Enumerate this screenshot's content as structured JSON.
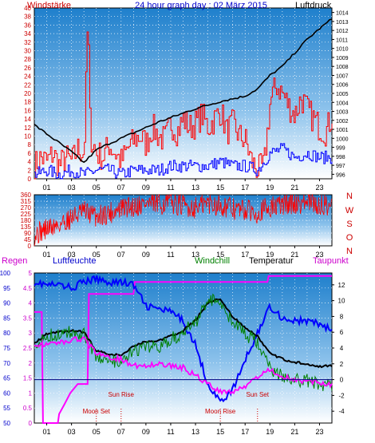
{
  "chart_data": [
    {
      "type": "line",
      "title": "24 hour graph day : 02 März 2015",
      "left_label": "Windstärke",
      "right_label": "Luftdruck",
      "x_ticks": [
        "01",
        "03",
        "05",
        "07",
        "09",
        "11",
        "13",
        "15",
        "17",
        "19",
        "21",
        "23"
      ],
      "xlim": [
        0,
        24
      ],
      "left_ticks": [
        "0",
        "2",
        "4",
        "6",
        "8",
        "10",
        "12",
        "14",
        "16",
        "18",
        "20",
        "22",
        "24",
        "26",
        "28",
        "30",
        "32",
        "34",
        "36",
        "38",
        "40"
      ],
      "left_ylim": [
        0,
        40
      ],
      "right_ticks": [
        "996",
        "997",
        "998",
        "999",
        "1000",
        "1001",
        "1002",
        "1003",
        "1004",
        "1005",
        "1006",
        "1007",
        "1008",
        "1009",
        "1010",
        "1011",
        "1012",
        "1013",
        "1014"
      ],
      "right_ylim": [
        995.5,
        1014.5
      ],
      "series": [
        {
          "role": "wind gust",
          "axis": "left",
          "color": "#ff0000",
          "x": [
            0,
            0.5,
            1,
            1.5,
            2,
            2.5,
            3,
            3.5,
            4,
            4.3,
            4.5,
            5,
            5.5,
            6,
            6.5,
            7,
            7.5,
            8,
            8.5,
            9,
            9.5,
            10,
            10.5,
            11,
            11.5,
            12,
            12.5,
            13,
            13.5,
            14,
            14.5,
            15,
            15.5,
            16,
            16.5,
            17,
            17.5,
            18,
            18.5,
            19,
            19.5,
            20,
            20.5,
            21,
            21.5,
            22,
            22.5,
            23,
            23.5,
            24
          ],
          "values": [
            3,
            5,
            4,
            6,
            3,
            5,
            4,
            7,
            6,
            39,
            10,
            6,
            5,
            8,
            6,
            4,
            7,
            9,
            10,
            8,
            12,
            10,
            9,
            13,
            11,
            14,
            12,
            13,
            15,
            12,
            14,
            16,
            11,
            13,
            10,
            9,
            4,
            2,
            3,
            18,
            22,
            20,
            17,
            15,
            19,
            16,
            14,
            12,
            11,
            15
          ]
        },
        {
          "role": "wind average",
          "axis": "left",
          "color": "#0000ff",
          "x": [
            0,
            1,
            2,
            3,
            4,
            5,
            6,
            7,
            8,
            9,
            10,
            11,
            12,
            13,
            14,
            15,
            16,
            17,
            18,
            19,
            20,
            21,
            22,
            23,
            24
          ],
          "values": [
            1,
            2,
            1,
            2,
            1,
            2,
            2,
            1,
            2,
            2,
            2,
            3,
            3,
            3,
            3,
            4,
            3,
            3,
            2,
            6,
            7,
            5,
            6,
            5,
            5
          ]
        },
        {
          "role": "pressure",
          "axis": "right",
          "color": "#000000",
          "x": [
            0,
            1,
            2,
            3,
            4,
            5,
            6,
            7,
            8,
            9,
            10,
            11,
            12,
            13,
            14,
            15,
            16,
            17,
            18,
            19,
            20,
            21,
            22,
            23,
            24
          ],
          "values": [
            1001.5,
            1000.5,
            999.5,
            998.5,
            997.3,
            998.7,
            999.4,
            1000.0,
            1000.6,
            1001.2,
            1001.8,
            1002.3,
            1002.8,
            1003.3,
            1003.7,
            1004.1,
            1004.4,
            1004.7,
            1005.5,
            1007.0,
            1008.0,
            1009.5,
            1011.0,
            1012.2,
            1013.3
          ]
        }
      ]
    },
    {
      "type": "line",
      "x_ticks": [
        "01",
        "03",
        "05",
        "07",
        "09",
        "11",
        "13",
        "15",
        "17",
        "19",
        "21",
        "23"
      ],
      "xlim": [
        0,
        24
      ],
      "y_ticks": [
        "0",
        "45",
        "90",
        "135",
        "180",
        "225",
        "270",
        "315",
        "360"
      ],
      "ylim": [
        0,
        360
      ],
      "right_labels": [
        "N",
        "W",
        "S",
        "O",
        "N"
      ],
      "series": [
        {
          "role": "wind direction",
          "color": "#ff0000",
          "x": [
            0,
            1,
            2,
            3,
            4,
            5,
            6,
            7,
            8,
            9,
            10,
            11,
            12,
            13,
            14,
            15,
            16,
            17,
            18,
            19,
            20,
            21,
            22,
            23,
            24
          ],
          "values": [
            80,
            120,
            150,
            200,
            240,
            210,
            230,
            260,
            280,
            300,
            290,
            310,
            280,
            270,
            300,
            290,
            260,
            250,
            240,
            270,
            290,
            300,
            310,
            280,
            300
          ]
        }
      ]
    },
    {
      "type": "line",
      "labels": {
        "rain": "Regen",
        "humidity": "Luftfeuchte",
        "windchill": "Windchill",
        "temperature": "Temperatur",
        "dewpoint": "Taupunkt"
      },
      "x_ticks": [
        "01",
        "03",
        "05",
        "07",
        "09",
        "11",
        "13",
        "15",
        "17",
        "19",
        "21",
        "23"
      ],
      "xlim": [
        0,
        24
      ],
      "rain_ticks": [
        "0",
        "0.5",
        "1",
        "1.5",
        "2",
        "2.5",
        "3",
        "3.5",
        "4",
        "4.5",
        "5"
      ],
      "rain_ylim": [
        0,
        5
      ],
      "humidity_ticks": [
        "50",
        "55",
        "60",
        "65",
        "70",
        "75",
        "80",
        "85",
        "90",
        "95",
        "100"
      ],
      "humidity_ylim": [
        50,
        100
      ],
      "temp_ticks": [
        "-4",
        "-2",
        "0",
        "2",
        "4",
        "6",
        "8",
        "10",
        "12"
      ],
      "temp_ylim": [
        -5.5,
        13.5
      ],
      "annotations": [
        {
          "text": "Sun Rise",
          "x": 7
        },
        {
          "text": "Moon Set",
          "x": 5
        },
        {
          "text": "Moon Rise",
          "x": 15
        },
        {
          "text": "Sun Set",
          "x": 18
        }
      ],
      "series": [
        {
          "role": "rain",
          "axis": "rain",
          "color": "#ff00ff",
          "x": [
            0,
            0.6,
            0.7,
            1.9,
            2.0,
            2.4,
            2.9,
            3.5,
            4.3,
            4.4,
            8.0,
            8.1,
            18.8,
            18.9,
            24
          ],
          "values": [
            3.7,
            3.7,
            0,
            0,
            0.3,
            0.6,
            1.0,
            1.3,
            1.3,
            4.3,
            4.3,
            4.7,
            4.7,
            4.9,
            4.9
          ]
        },
        {
          "role": "humidity",
          "axis": "humidity",
          "color": "#0000ff",
          "x": [
            0,
            1,
            2,
            3,
            4,
            5,
            6,
            7,
            8,
            9,
            10,
            11,
            12,
            13,
            14,
            15,
            16,
            17,
            18,
            19,
            20,
            21,
            22,
            23,
            24
          ],
          "values": [
            97,
            96,
            96,
            95,
            97,
            98,
            97,
            97,
            96,
            89,
            88,
            87,
            84,
            76,
            63,
            57,
            61,
            71,
            80,
            89,
            85,
            84,
            84,
            83,
            81
          ]
        },
        {
          "role": "temperature",
          "axis": "temp",
          "color": "#000000",
          "x": [
            0,
            1,
            2,
            3,
            4,
            5,
            6,
            7,
            8,
            9,
            10,
            11,
            12,
            13,
            14,
            15,
            16,
            17,
            18,
            19,
            20,
            21,
            22,
            23,
            24
          ],
          "values": [
            4.5,
            5.8,
            6.0,
            6.2,
            6.0,
            3.6,
            3.3,
            3.0,
            4.3,
            4.8,
            4.9,
            5.5,
            6.2,
            7.5,
            9.8,
            10.2,
            8.0,
            6.5,
            5.5,
            3.3,
            2.6,
            2.2,
            2.0,
            1.7,
            1.7
          ]
        },
        {
          "role": "windchill",
          "axis": "temp",
          "color": "#008000",
          "x": [
            0,
            1,
            2,
            3,
            4,
            5,
            6,
            7,
            8,
            9,
            10,
            11,
            12,
            13,
            14,
            15,
            16,
            17,
            18,
            19,
            20,
            21,
            22,
            23,
            24
          ],
          "values": [
            4.0,
            5.5,
            5.7,
            6.0,
            5.9,
            2.8,
            2.4,
            2.0,
            3.5,
            4.0,
            4.2,
            5.0,
            6.0,
            7.3,
            10.0,
            10.0,
            7.3,
            5.7,
            4.8,
            1.3,
            0.4,
            0.0,
            -0.2,
            -0.6,
            -0.5
          ]
        },
        {
          "role": "dewpoint",
          "axis": "temp",
          "color": "#ff00ff",
          "x": [
            0,
            1,
            2,
            3,
            4,
            5,
            6,
            7,
            8,
            9,
            10,
            11,
            12,
            13,
            14,
            15,
            16,
            17,
            18,
            19,
            20,
            21,
            22,
            23,
            24
          ],
          "values": [
            4.2,
            4.5,
            4.6,
            5.0,
            5.2,
            3.3,
            2.8,
            2.6,
            1.8,
            1.8,
            2.0,
            1.8,
            1.5,
            0.5,
            -0.5,
            -1.5,
            -1.5,
            -0.8,
            0.3,
            1.3,
            0.5,
            0.0,
            -0.2,
            -0.4,
            -0.6
          ]
        }
      ]
    }
  ]
}
